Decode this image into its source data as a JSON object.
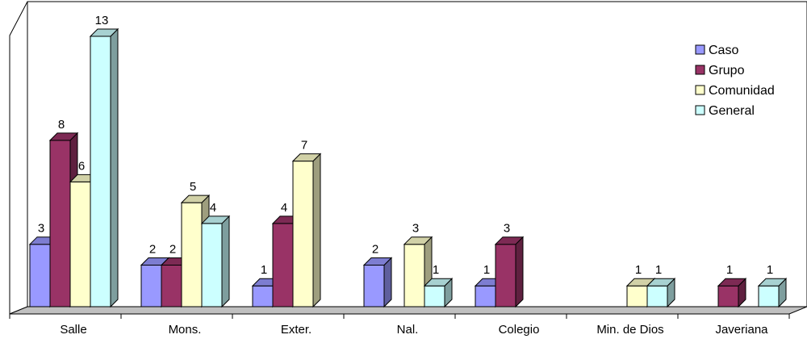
{
  "chart_data": {
    "type": "bar",
    "categories": [
      "Salle",
      "Mons.",
      "Exter.",
      "Nal.",
      "Colegio",
      "Min. de Dios",
      "Javeriana"
    ],
    "series": [
      {
        "name": "Caso",
        "values": [
          3,
          2,
          1,
          2,
          1,
          0,
          0
        ],
        "color": "#9999ff"
      },
      {
        "name": "Grupo",
        "values": [
          8,
          2,
          4,
          0,
          3,
          0,
          1
        ],
        "color": "#993366"
      },
      {
        "name": "Comunidad",
        "values": [
          6,
          5,
          7,
          3,
          0,
          1,
          0
        ],
        "color": "#ffffcc"
      },
      {
        "name": "General",
        "values": [
          13,
          4,
          0,
          1,
          0,
          1,
          1
        ],
        "color": "#ccffff"
      }
    ],
    "ylim": [
      0,
      13
    ],
    "legend_position": "right",
    "grid": false,
    "style": "3d-clustered"
  }
}
